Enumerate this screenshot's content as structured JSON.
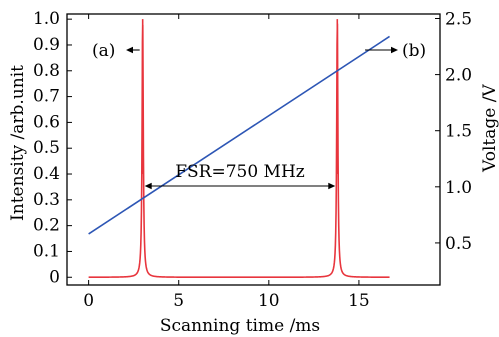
{
  "chart_data": {
    "type": "line",
    "title": "",
    "xlabel": "Scanning time /ms",
    "ylabel": "Intensity /arb.unit",
    "y2label": "Voltage /V",
    "xlim": [
      -1.2,
      19.5
    ],
    "ylim": [
      -0.03,
      1.02
    ],
    "y2lim": [
      0.125,
      2.54
    ],
    "x_ticks": [
      0,
      5,
      10,
      15
    ],
    "y_ticks": [
      0,
      0.1,
      0.2,
      0.3,
      0.4,
      0.5,
      0.6,
      0.7,
      0.8,
      0.9,
      1.0
    ],
    "y_tick_labels": [
      "0",
      "0.1",
      "0.2",
      "0.3",
      "0.4",
      "0.5",
      "0.6",
      "0.7",
      "0.8",
      "0.9",
      "1.0"
    ],
    "y2_ticks": [
      0.5,
      1.0,
      1.5,
      2.0,
      2.5
    ],
    "y2_tick_labels": [
      "0.5",
      "1.0",
      "1.5",
      "2.0",
      "2.5"
    ],
    "grid": false,
    "series": [
      {
        "axis": "left",
        "color": "#e8353d",
        "peaks": [
          {
            "center": 3.0,
            "height": 1.0
          },
          {
            "center": 13.8,
            "height": 1.0
          }
        ],
        "baseline": 0.0,
        "width": 0.08,
        "x_range": [
          0,
          16.7
        ]
      },
      {
        "axis": "right",
        "color": "#2d56b5",
        "x": [
          0,
          16.7
        ],
        "y": [
          0.58,
          2.34
        ]
      }
    ],
    "annotations": {
      "a_label": "(a)",
      "b_label": "(b)",
      "fsr_label": "FSR=750 MHz"
    }
  }
}
